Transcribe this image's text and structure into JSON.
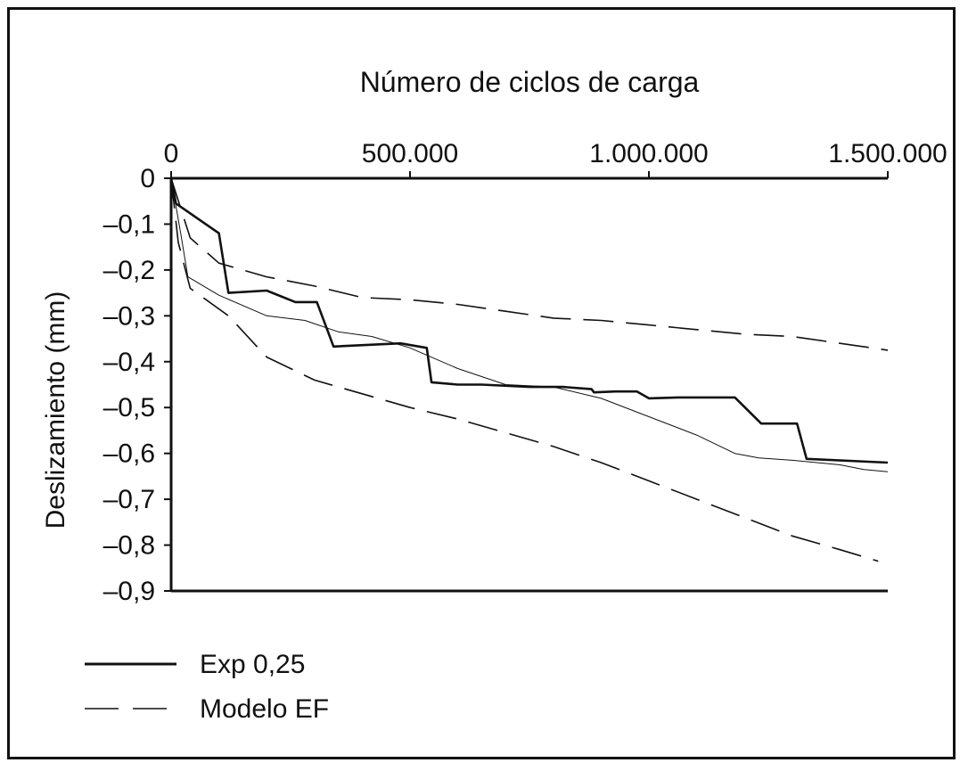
{
  "chart_data": {
    "type": "line",
    "title": "",
    "xlabel": "Número de ciclos de carga",
    "ylabel": "Deslizamiento (mm)",
    "xlim": [
      0,
      1500000
    ],
    "ylim": [
      -0.9,
      0
    ],
    "grid": false,
    "x_axis_position": "top",
    "legend_position": "bottom-left",
    "x_ticks": [
      {
        "value": 0,
        "label": "0"
      },
      {
        "value": 500000,
        "label": "500.000"
      },
      {
        "value": 1000000,
        "label": "1.000.000"
      },
      {
        "value": 1500000,
        "label": "1.500.000"
      }
    ],
    "y_ticks": [
      {
        "value": 0,
        "label": "0"
      },
      {
        "value": -0.1,
        "label": "–0,1"
      },
      {
        "value": -0.2,
        "label": "–0,2"
      },
      {
        "value": -0.3,
        "label": "–0,3"
      },
      {
        "value": -0.4,
        "label": "–0,4"
      },
      {
        "value": -0.5,
        "label": "–0,5"
      },
      {
        "value": -0.6,
        "label": "–0,6"
      },
      {
        "value": -0.7,
        "label": "–0,7"
      },
      {
        "value": -0.8,
        "label": "–0,8"
      },
      {
        "value": -0.9,
        "label": "–0,9"
      }
    ],
    "legend": [
      {
        "label": "Exp 0,25",
        "style": "solid"
      },
      {
        "label": "Modelo EF",
        "style": "dashed"
      }
    ],
    "series": [
      {
        "style": "solid-thick",
        "x": [
          0,
          10000,
          100000,
          120000,
          200000,
          260000,
          305000,
          340000,
          480000,
          535000,
          545000,
          600000,
          650000,
          750000,
          800000,
          820000,
          880000,
          885000,
          930000,
          975000,
          1000000,
          1060000,
          1170000,
          1180000,
          1235000,
          1310000,
          1330000,
          1500000
        ],
        "y": [
          0,
          -0.055,
          -0.12,
          -0.25,
          -0.245,
          -0.27,
          -0.27,
          -0.367,
          -0.36,
          -0.37,
          -0.445,
          -0.45,
          -0.45,
          -0.455,
          -0.455,
          -0.455,
          -0.46,
          -0.467,
          -0.465,
          -0.465,
          -0.48,
          -0.478,
          -0.478,
          -0.478,
          -0.535,
          -0.535,
          -0.612,
          -0.62
        ]
      },
      {
        "style": "solid-thin",
        "x": [
          0,
          20000,
          35000,
          100000,
          200000,
          280000,
          350000,
          420000,
          500000,
          600000,
          700000,
          800000,
          900000,
          1000000,
          1100000,
          1180000,
          1230000,
          1300000,
          1400000,
          1450000,
          1500000
        ],
        "y": [
          0,
          -0.12,
          -0.215,
          -0.255,
          -0.3,
          -0.31,
          -0.335,
          -0.345,
          -0.37,
          -0.415,
          -0.45,
          -0.455,
          -0.48,
          -0.52,
          -0.56,
          -0.6,
          -0.61,
          -0.615,
          -0.625,
          -0.635,
          -0.64
        ]
      },
      {
        "style": "dashed-upper",
        "x": [
          0,
          40000,
          100000,
          200000,
          300000,
          400000,
          500000,
          600000,
          700000,
          800000,
          900000,
          1000000,
          1100000,
          1200000,
          1300000,
          1400000,
          1500000
        ],
        "y": [
          0,
          -0.13,
          -0.185,
          -0.215,
          -0.235,
          -0.26,
          -0.265,
          -0.275,
          -0.29,
          -0.305,
          -0.31,
          -0.32,
          -0.33,
          -0.34,
          -0.345,
          -0.36,
          -0.375
        ]
      },
      {
        "style": "dashed-lower",
        "x": [
          0,
          15000,
          40000,
          120000,
          200000,
          300000,
          400000,
          500000,
          600000,
          700000,
          800000,
          900000,
          1000000,
          1100000,
          1200000,
          1300000,
          1400000,
          1480000
        ],
        "y": [
          0,
          -0.14,
          -0.24,
          -0.3,
          -0.39,
          -0.44,
          -0.47,
          -0.5,
          -0.525,
          -0.555,
          -0.585,
          -0.62,
          -0.66,
          -0.7,
          -0.74,
          -0.78,
          -0.81,
          -0.835
        ]
      }
    ]
  }
}
